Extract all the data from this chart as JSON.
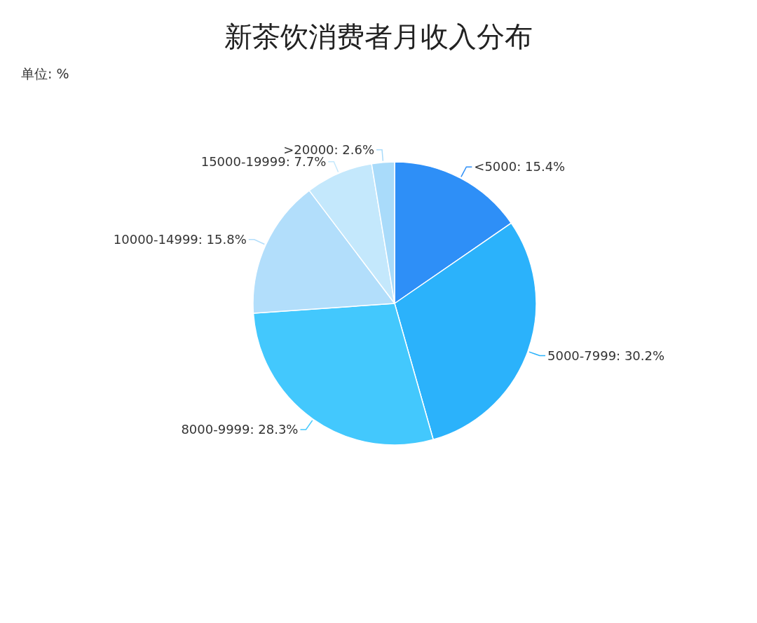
{
  "chart_data": {
    "type": "pie",
    "title": "新茶饮消费者月收入分布",
    "subtitle": "单位: %",
    "categories": [
      "<5000",
      "5000-7999",
      "8000-9999",
      "10000-14999",
      "15000-19999",
      ">20000"
    ],
    "values": [
      15.4,
      30.2,
      28.3,
      15.8,
      7.7,
      2.6
    ],
    "value_labels": [
      "15.4%",
      "30.2%",
      "28.3%",
      "15.8%",
      "7.7%",
      "2.6%"
    ],
    "colors": [
      "#2e8ff7",
      "#2bb2fb",
      "#43c8fd",
      "#b2defb",
      "#c4e8fc",
      "#a9dbfa"
    ],
    "legend": false
  }
}
